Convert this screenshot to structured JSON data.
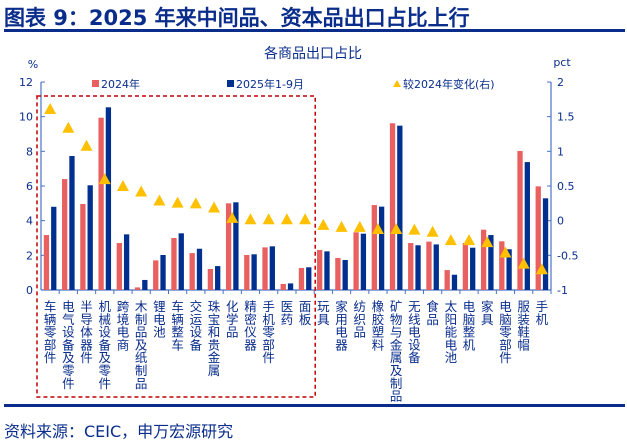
{
  "figure_title": "图表 9：2025 年来中间品、资本品出口占比上行",
  "source": "资料来源：CEIC，申万宏源研究",
  "colors": {
    "s2024": "#e8605f",
    "s2025": "#00308f",
    "change": "#ffc000",
    "axis": "#4a72c4",
    "text": "#0a2d8c",
    "highlight_box": "#c00000"
  },
  "chart_data": {
    "type": "bar",
    "title": "各商品出口占比",
    "ylabel_left": "%",
    "ylabel_right": "pct",
    "ylim_left": [
      0,
      12
    ],
    "yticks_left": [
      "0",
      "2",
      "4",
      "6",
      "8",
      "10",
      "12"
    ],
    "ylim_right": [
      -1,
      2
    ],
    "yticks_right": [
      "-1",
      "-0.5",
      "0",
      "0.5",
      "1",
      "1.5",
      "2"
    ],
    "grid": false,
    "legend_position": "top",
    "categories": [
      "车辆零部件",
      "电气设备及零件",
      "半导体器件",
      "机械设备及零件",
      "跨境电商",
      "木制品及纸制品",
      "锂电池",
      "车辆整车",
      "交运设备",
      "珠宝和贵金属",
      "化学品",
      "精密仪器",
      "手机零部件",
      "医药",
      "面板",
      "玩具",
      "家用电器",
      "纺织品",
      "橡胶塑料",
      "矿物与金属及制品",
      "无线电设备",
      "食品",
      "太阳能电池",
      "电脑整机",
      "家具",
      "电脑零部件",
      "服装鞋帽",
      "手机"
    ],
    "highlighted_categories": 15,
    "series": [
      {
        "name": "2024年",
        "type": "bar",
        "axis": "left",
        "values": [
          3.17,
          6.4,
          4.96,
          9.94,
          2.71,
          0.15,
          1.71,
          3.0,
          2.13,
          1.21,
          5.0,
          2.02,
          2.46,
          0.35,
          1.27,
          2.31,
          1.85,
          3.33,
          4.9,
          9.62,
          2.71,
          2.79,
          1.15,
          2.71,
          3.48,
          2.81,
          8.02,
          5.98
        ]
      },
      {
        "name": "2025年1-9月",
        "type": "bar",
        "axis": "left",
        "values": [
          4.8,
          7.73,
          6.04,
          10.54,
          3.21,
          0.58,
          2.02,
          3.27,
          2.38,
          1.38,
          5.06,
          2.06,
          2.52,
          0.38,
          1.31,
          2.23,
          1.73,
          3.25,
          4.81,
          9.48,
          2.58,
          2.63,
          0.88,
          2.44,
          3.17,
          2.35,
          7.38,
          5.29
        ]
      },
      {
        "name": "较2024年变化(右)",
        "type": "scatter",
        "marker": "triangle",
        "axis": "right",
        "values": [
          1.61,
          1.34,
          1.08,
          0.6,
          0.5,
          0.42,
          0.29,
          0.26,
          0.25,
          0.19,
          0.04,
          0.02,
          0.02,
          0.02,
          0.02,
          -0.06,
          -0.09,
          -0.09,
          -0.12,
          -0.12,
          -0.13,
          -0.16,
          -0.28,
          -0.28,
          -0.31,
          -0.46,
          -0.62,
          -0.7
        ]
      }
    ]
  }
}
